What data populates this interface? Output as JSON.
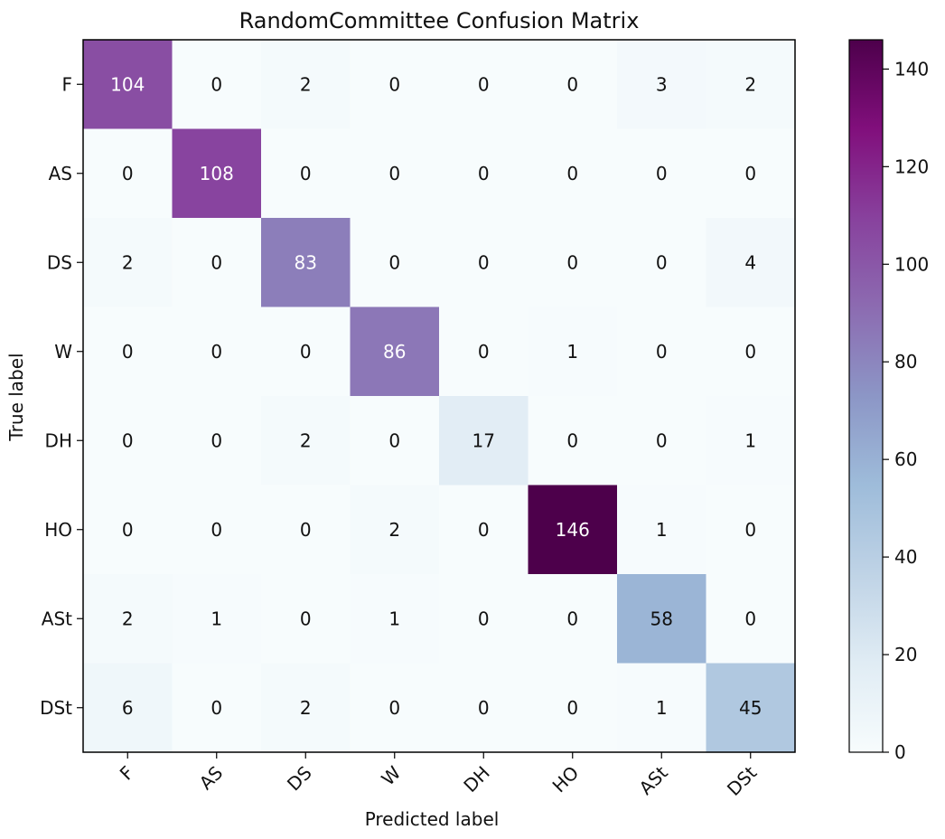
{
  "chart_data": {
    "type": "heatmap",
    "title": "RandomCommittee Confusion Matrix",
    "xlabel": "Predicted label",
    "ylabel": "True label",
    "row_labels": [
      "F",
      "AS",
      "DS",
      "W",
      "DH",
      "HO",
      "ASt",
      "DSt"
    ],
    "col_labels": [
      "F",
      "AS",
      "DS",
      "W",
      "DH",
      "HO",
      "ASt",
      "DSt"
    ],
    "matrix": [
      [
        104,
        0,
        2,
        0,
        0,
        0,
        3,
        2
      ],
      [
        0,
        108,
        0,
        0,
        0,
        0,
        0,
        0
      ],
      [
        2,
        0,
        83,
        0,
        0,
        0,
        0,
        4
      ],
      [
        0,
        0,
        0,
        86,
        0,
        1,
        0,
        0
      ],
      [
        0,
        0,
        2,
        0,
        17,
        0,
        0,
        1
      ],
      [
        0,
        0,
        0,
        2,
        0,
        146,
        1,
        0
      ],
      [
        2,
        1,
        0,
        1,
        0,
        0,
        58,
        0
      ],
      [
        6,
        0,
        2,
        0,
        0,
        0,
        1,
        45
      ]
    ],
    "colormap": "BuPu",
    "color_range": [
      0,
      146
    ],
    "colorbar_ticks": [
      0,
      20,
      40,
      60,
      80,
      100,
      120,
      140
    ],
    "colorbar_tick_labels": [
      "0",
      "20",
      "40",
      "60",
      "80",
      "100",
      "120",
      "140"
    ]
  }
}
